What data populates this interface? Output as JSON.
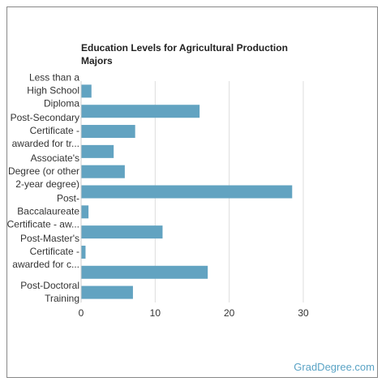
{
  "chart_data": {
    "type": "bar",
    "orientation": "horizontal",
    "title": "Education Levels for Agricultural Production Majors",
    "categories": [
      [
        "Less than a",
        "High School",
        "Diploma"
      ],
      null,
      [
        "Post-Secondary",
        "Certificate -",
        "awarded for tr..."
      ],
      null,
      [
        "Associate's",
        "Degree (or other",
        "2-year degree)"
      ],
      null,
      [
        "Post-",
        "Baccalaureate",
        "Certificate - aw..."
      ],
      null,
      [
        "Post-Master's",
        "Certificate -",
        "awarded for c..."
      ],
      null,
      [
        "Post-Doctoral",
        "Training"
      ]
    ],
    "values": [
      1.4,
      16,
      7.3,
      4.4,
      5.9,
      28.5,
      1.0,
      11,
      0.6,
      17.1,
      7
    ],
    "color": "#62a3c1",
    "xlim": [
      0,
      30
    ],
    "xticks": [
      0,
      10,
      20,
      30
    ],
    "grid": true,
    "source": "GradDegree.com"
  }
}
